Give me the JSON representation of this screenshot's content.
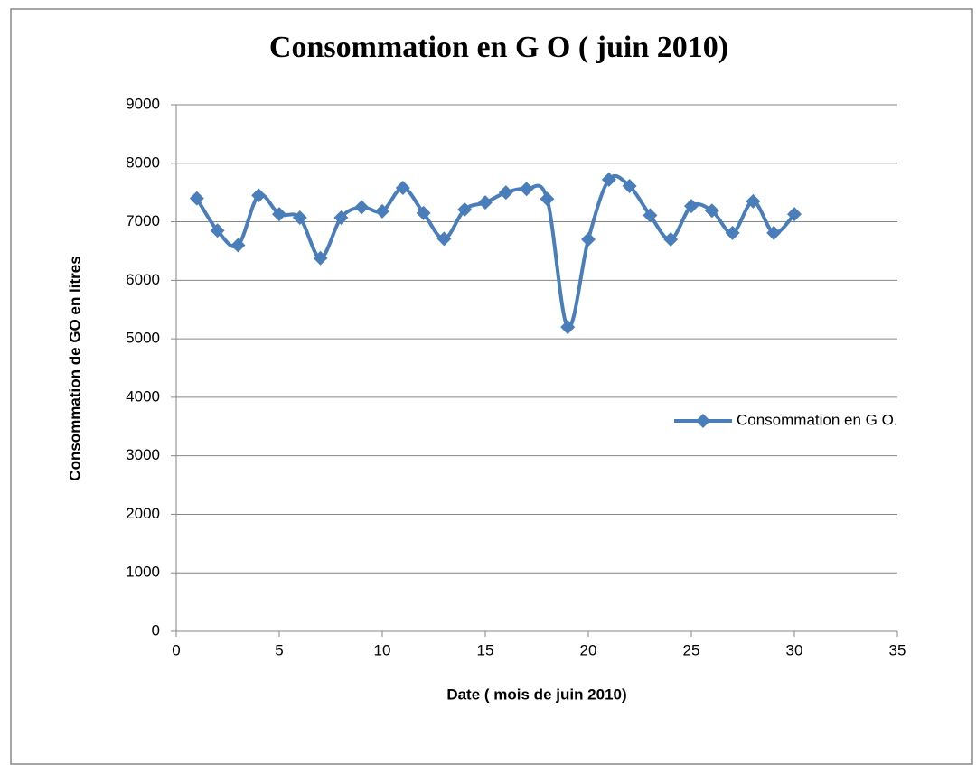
{
  "chart_data": {
    "type": "line",
    "title": "Consommation en G O ( juin 2010)",
    "x_label": "Date ( mois de juin 2010)",
    "y_label": "Consommation de GO en litres",
    "x": [
      1,
      2,
      3,
      4,
      5,
      6,
      7,
      8,
      9,
      10,
      11,
      12,
      13,
      14,
      15,
      16,
      17,
      18,
      19,
      20,
      21,
      22,
      23,
      24,
      25,
      26,
      27,
      28,
      29,
      30
    ],
    "series": [
      {
        "name": "Consommation en G O.",
        "color": "#4a7ebb",
        "values": [
          7400,
          6850,
          6600,
          7450,
          7130,
          7070,
          6380,
          7070,
          7250,
          7180,
          7580,
          7150,
          6710,
          7210,
          7330,
          7500,
          7560,
          7390,
          5200,
          6700,
          7720,
          7610,
          7110,
          6700,
          7270,
          7190,
          6810,
          7350,
          6810,
          7130
        ]
      }
    ],
    "xlim": [
      0,
      35
    ],
    "xticks": [
      0,
      5,
      10,
      15,
      20,
      25,
      30,
      35
    ],
    "ylim": [
      0,
      9000
    ],
    "yticks": [
      0,
      1000,
      2000,
      3000,
      4000,
      5000,
      6000,
      7000,
      8000,
      9000
    ],
    "grid": true,
    "smooth": true,
    "legend": "right"
  }
}
